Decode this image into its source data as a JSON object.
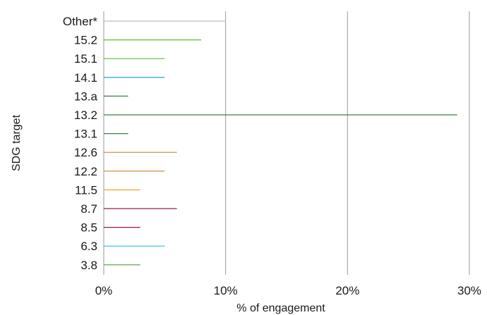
{
  "chart_data": {
    "type": "bar",
    "orientation": "horizontal",
    "title": "",
    "xlabel": "% of engagement",
    "ylabel": "SDG target",
    "xlim": [
      0,
      30
    ],
    "x_ticks": [
      "0%",
      "10%",
      "20%",
      "30%"
    ],
    "grid": "vertical gridlines",
    "legend": "none",
    "categories": [
      "Other*",
      "15.2",
      "15.1",
      "14.1",
      "13.a",
      "13.2",
      "13.1",
      "12.6",
      "12.2",
      "11.5",
      "8.7",
      "8.5",
      "6.3",
      "3.8"
    ],
    "values": [
      10,
      8,
      5,
      5,
      2,
      29,
      2,
      6,
      5,
      3,
      6,
      3,
      5,
      3
    ],
    "colors": [
      "#bdbdbd",
      "#56c02b",
      "#56c02b",
      "#0a97d9",
      "#3f7e44",
      "#3f7e44",
      "#3f7e44",
      "#bf8b2e",
      "#bf8b2e",
      "#fd9d24",
      "#a21942",
      "#a21942",
      "#26bde2",
      "#4c9f38"
    ]
  }
}
